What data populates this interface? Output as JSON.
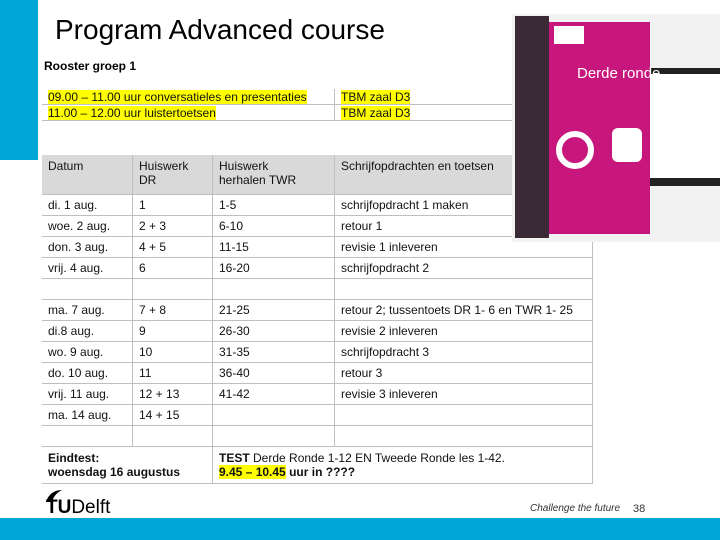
{
  "header": {
    "title": "Program Advanced course",
    "subtitle": "Rooster groep 1"
  },
  "highlight_rows": [
    [
      "09.00 – 11.00 uur conversatieles en presentaties",
      "TBM zaal D3"
    ],
    [
      "11.00 – 12.00 uur luistertoetsen",
      "TBM zaal D3"
    ]
  ],
  "table": {
    "header": [
      [
        "Datum"
      ],
      [
        "Huiswerk",
        "DR"
      ],
      [
        "Huiswerk",
        "herhalen TWR"
      ],
      [
        "Schrijfopdrachten en toetsen"
      ]
    ],
    "blocks": [
      [
        [
          "di. 1 aug.",
          "1",
          "1-5",
          "schrijfopdracht 1 maken"
        ],
        [
          "woe. 2 aug.",
          "2 + 3",
          "6-10",
          "retour 1"
        ],
        [
          "don. 3 aug.",
          "4 + 5",
          "11-15",
          "revisie 1 inleveren"
        ],
        [
          "vrij. 4 aug.",
          "6",
          "16-20",
          "schrijfopdracht 2"
        ]
      ],
      [
        [
          "ma. 7 aug.",
          "7 + 8",
          "21-25",
          "retour 2; tussentoets DR 1- 6 en TWR 1- 25"
        ],
        [
          "di.8 aug.",
          "9",
          "26-30",
          "revisie 2 inleveren"
        ],
        [
          "wo. 9 aug.",
          "10",
          "31-35",
          "schrijfopdracht 3"
        ],
        [
          "do. 10 aug.",
          "11",
          "36-40",
          "retour 3"
        ],
        [
          "vrij. 11 aug.",
          "12 + 13",
          "41-42",
          "revisie 3 inleveren"
        ],
        [
          "ma. 14 aug.",
          "14 + 15",
          "",
          ""
        ]
      ]
    ],
    "final": {
      "label": [
        "Eindtest:",
        "woensdag 16 augustus"
      ],
      "text": [
        [
          "TEST",
          " Derde Ronde 1-12 EN Tweede Ronde les 1-42."
        ],
        [
          "9.45 – 10.45",
          "uur in ????"
        ]
      ]
    }
  },
  "book": {
    "title": "Derde ronde"
  },
  "footer": {
    "logo": [
      "TU",
      "Delft"
    ],
    "slogan": "Challenge the future",
    "page": "38"
  }
}
